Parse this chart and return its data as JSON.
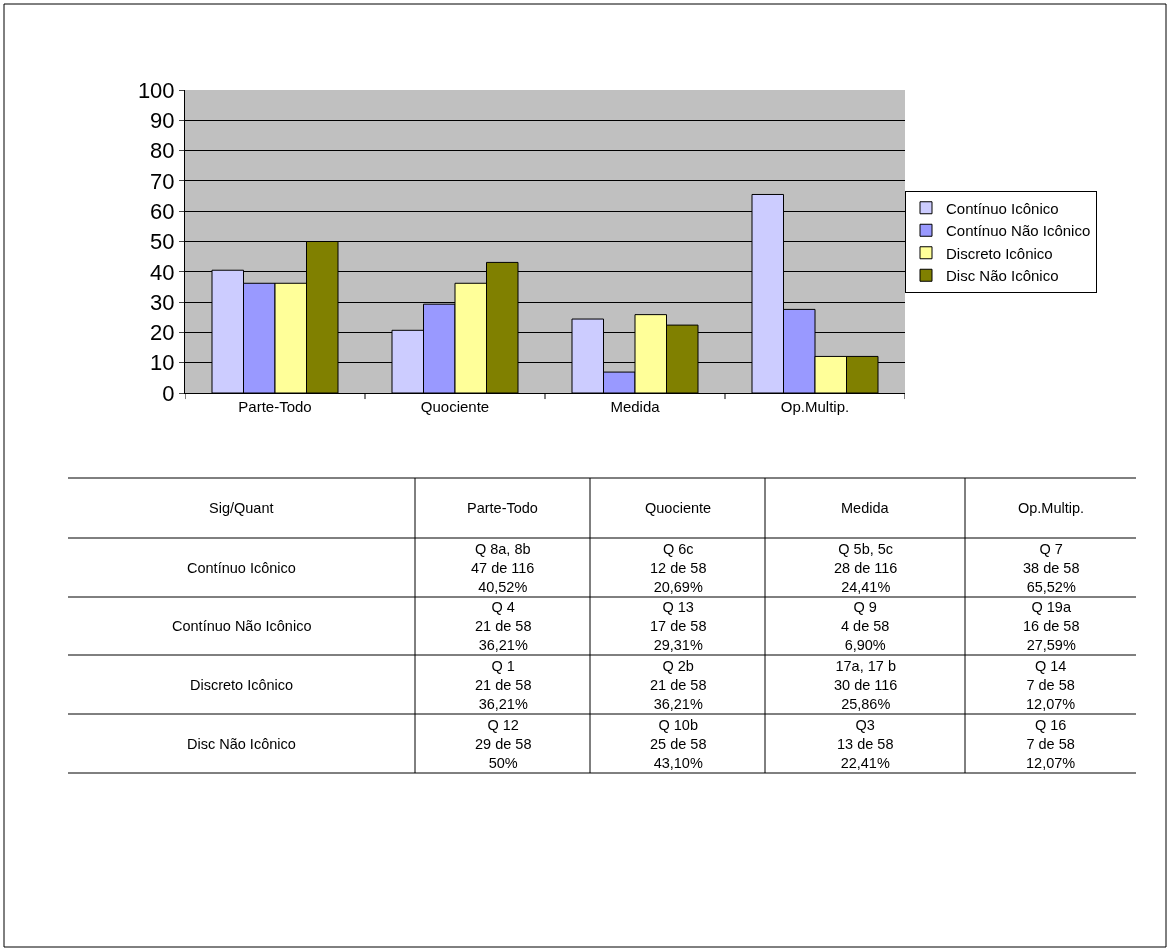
{
  "chart_data": {
    "type": "bar",
    "categories": [
      "Parte-Todo",
      "Quociente",
      "Medida",
      "Op.Multip."
    ],
    "series": [
      {
        "name": "Contínuo Icônico",
        "color": "#ccccff",
        "values": [
          40.52,
          20.69,
          24.41,
          65.52
        ]
      },
      {
        "name": "Contínuo Não Icônico",
        "color": "#9999ff",
        "values": [
          36.21,
          29.31,
          6.9,
          27.59
        ]
      },
      {
        "name": "Discreto Icônico",
        "color": "#ffff99",
        "values": [
          36.21,
          36.21,
          25.86,
          12.07
        ]
      },
      {
        "name": "Disc Não Icônico",
        "color": "#808000",
        "values": [
          50,
          43.1,
          22.41,
          12.07
        ]
      }
    ],
    "ylim": [
      0,
      100
    ],
    "yticks": [
      0,
      10,
      20,
      30,
      40,
      50,
      60,
      70,
      80,
      90,
      100
    ],
    "grid": "y",
    "legend": "right",
    "annotations": [
      "Sig/Quant",
      "Parte-Todo",
      "Quociente",
      "Medida",
      "Op.Multip.",
      "Contínuo Icônico",
      "Q 8a, 8b\n47 de 116\n40,52%",
      "Q 6c\n12 de 58\n20,69%",
      "Q 5b, 5c\n28 de 116\n24,41%",
      "Q 7\n38 de 58\n65,52%",
      "Contínuo Não Icônico",
      "Q 4\n21 de 58\n36,21%",
      "Q 13\n17 de 58\n29,31%",
      "Q 9\n4 de 58\n6,90%",
      "Q 19a\n16 de 58\n27,59%",
      "Discreto Icônico",
      "Q 1\n21 de 58\n36,21%",
      "Q 2b\n21 de 58\n36,21%",
      "17a, 17 b\n30 de 116\n25,86%",
      "Q 14\n7 de 58\n12,07%",
      "Disc Não Icônico",
      "Q 12\n29 de 58\n50%",
      "Q 10b\n25 de 58\n43,10%",
      "Q3\n13 de 58\n22,41%",
      "Q 16\n7 de 58\n12,07%"
    ]
  }
}
